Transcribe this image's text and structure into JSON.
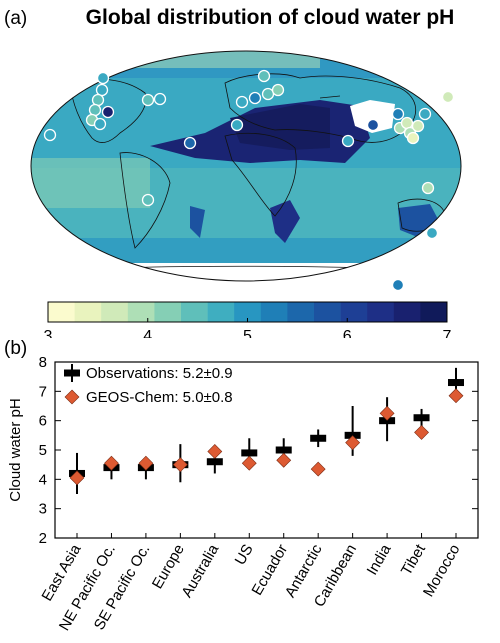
{
  "panel_a": {
    "label": "(a)",
    "title": "Global distribution of cloud water pH",
    "colorbar": {
      "ticks": [
        "3",
        "4",
        "5",
        "6",
        "7"
      ],
      "min": 3,
      "max": 7,
      "colors": [
        "#fbfbce",
        "#e9f3be",
        "#d0eab9",
        "#aedfb6",
        "#85cfb5",
        "#5fbfba",
        "#3faec0",
        "#2896c1",
        "#1f7fb7",
        "#1c67ab",
        "#1c52a0",
        "#1e3f95",
        "#1e2f86",
        "#19216f",
        "#101a5a"
      ]
    }
  },
  "panel_b": {
    "label": "(b)",
    "chart_data": {
      "type": "scatter",
      "categories": [
        "East Asia",
        "NE Pacific Oc.",
        "SE Pacific Oc.",
        "Europe",
        "Australia",
        "US",
        "Ecuador",
        "Antarctic",
        "Caribbean",
        "India",
        "Tibet",
        "Morocco"
      ],
      "ylabel": "Cloud water pH",
      "ylim": [
        2,
        8
      ],
      "yticks": [
        "2",
        "3",
        "4",
        "5",
        "6",
        "7",
        "8"
      ],
      "legend_position": "top-left",
      "series": [
        {
          "name": "Observations: 5.2±0.9",
          "marker": "black mean with error bar",
          "color": "#000000",
          "values": [
            4.2,
            4.4,
            4.4,
            4.5,
            4.6,
            4.9,
            5.0,
            5.4,
            5.5,
            6.0,
            6.1,
            7.3
          ],
          "low": [
            3.5,
            4.0,
            4.0,
            3.9,
            4.2,
            4.4,
            4.6,
            5.1,
            4.8,
            5.3,
            5.7,
            7.0
          ],
          "high": [
            4.9,
            4.7,
            4.7,
            5.2,
            5.0,
            5.4,
            5.4,
            5.7,
            6.5,
            6.8,
            6.4,
            7.8
          ]
        },
        {
          "name": "GEOS-Chem: 5.0±0.8",
          "marker": "diamond",
          "color": "#dd5a32",
          "values": [
            4.05,
            4.55,
            4.55,
            4.5,
            4.95,
            4.55,
            4.65,
            4.35,
            5.25,
            6.25,
            5.6,
            6.85
          ]
        }
      ]
    }
  }
}
